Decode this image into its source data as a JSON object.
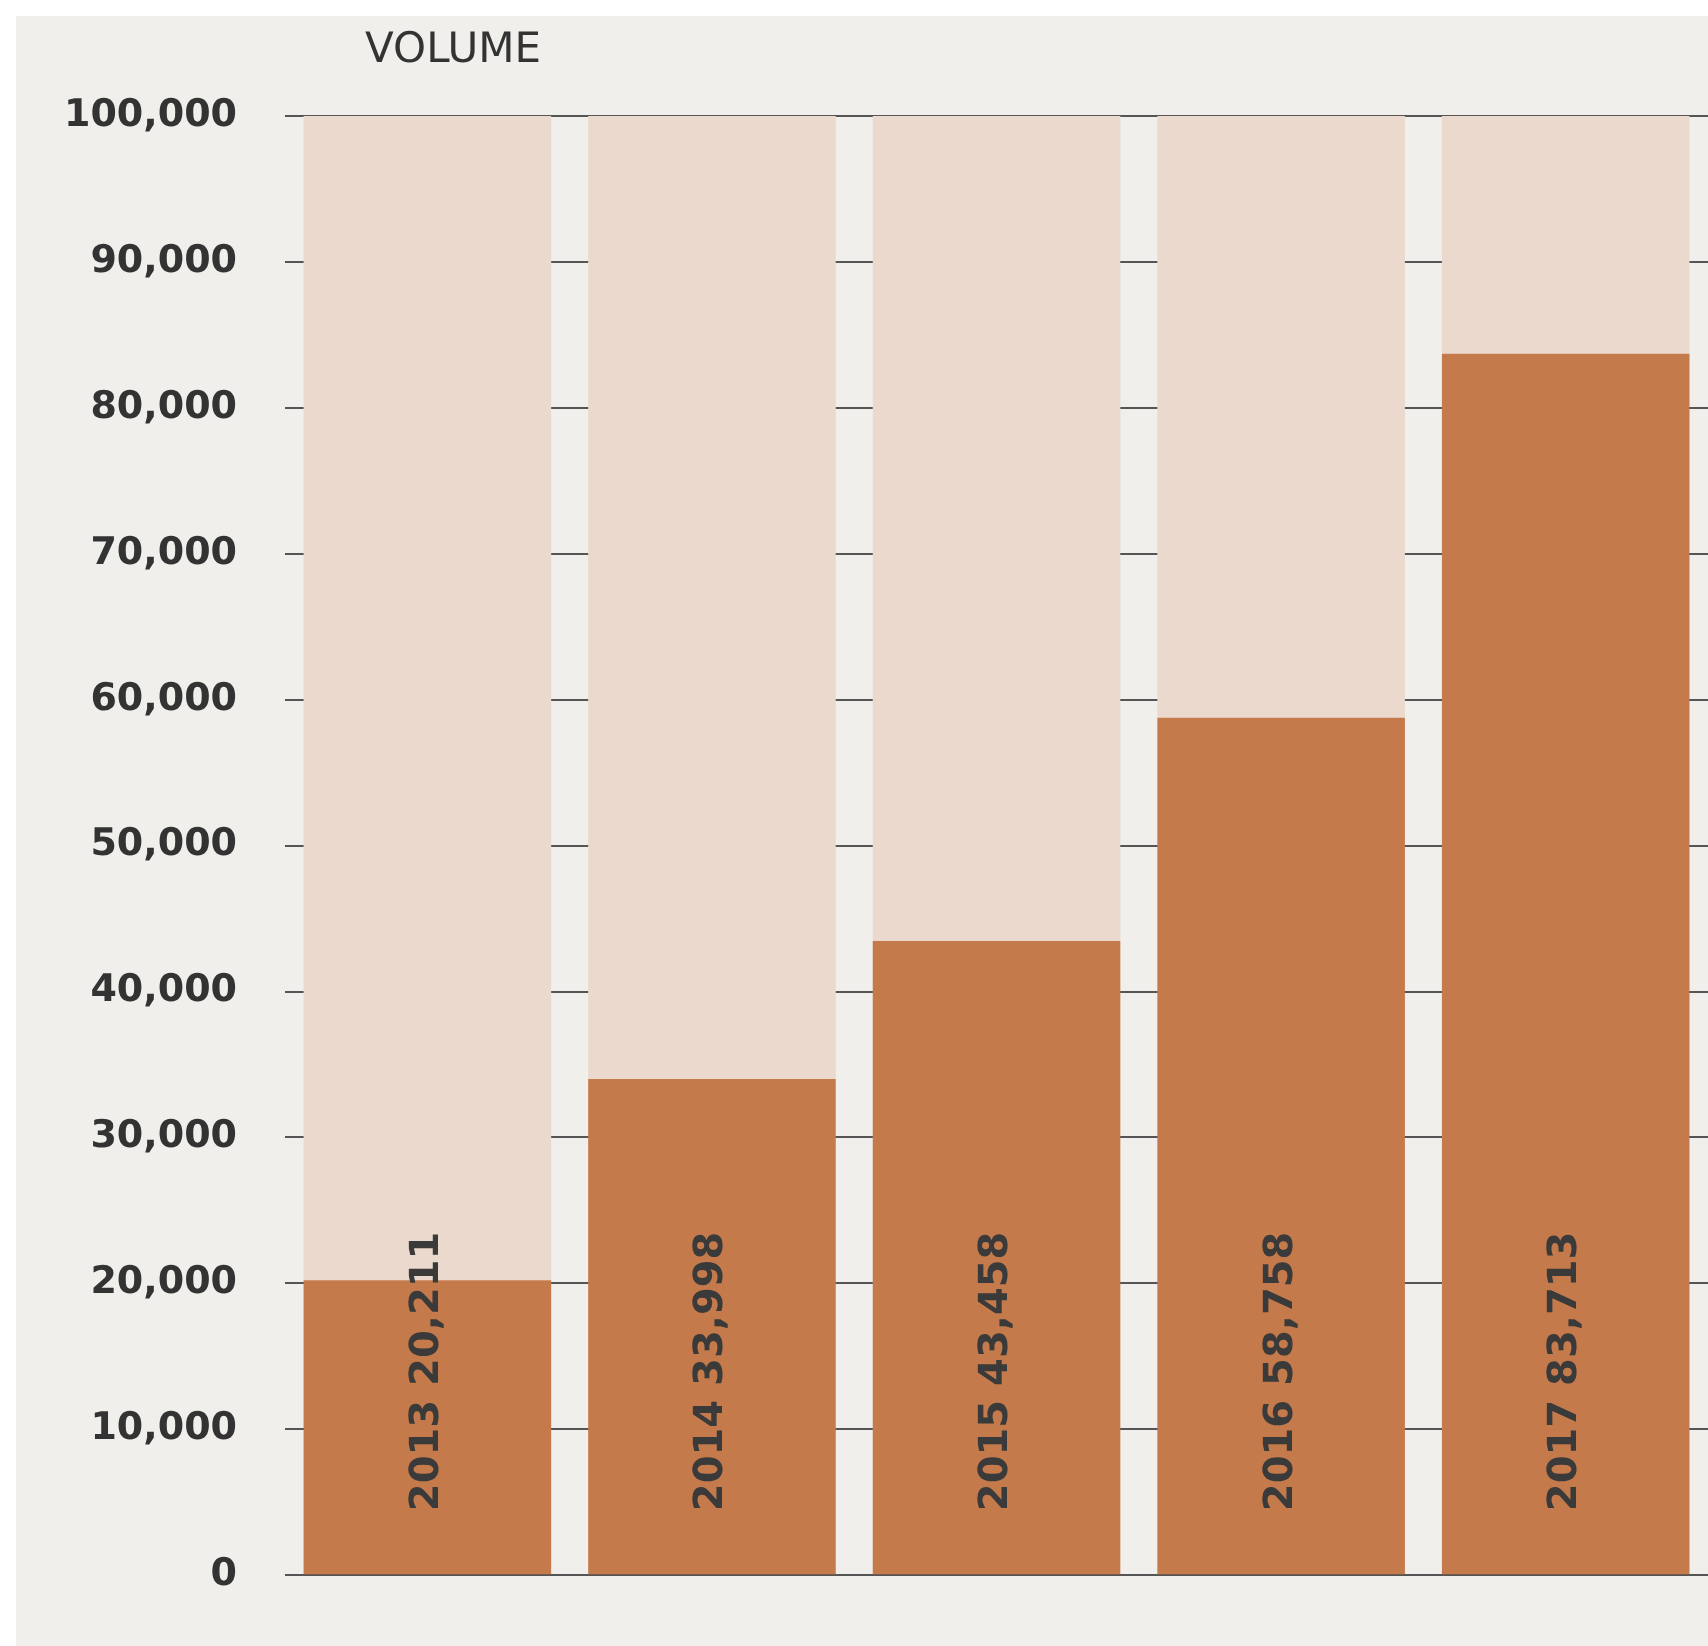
{
  "chart_data": {
    "type": "bar",
    "title": "VOLUME",
    "categories": [
      null,
      null,
      null,
      null,
      null
    ],
    "stacked": true,
    "series": [
      {
        "color": "#c57a4c",
        "values": [
          20211,
          33998,
          43458,
          58758,
          83713
        ],
        "value_labels": [
          "2013 20,211",
          "2014 33,998",
          "2015 43,458",
          "2016 58,758",
          "2017 83,713"
        ]
      },
      {
        "color": "#ead9cc",
        "values": [
          79789,
          66002,
          56542,
          41242,
          16287
        ]
      }
    ],
    "ylim": [
      0,
      100000
    ],
    "yticks": [
      0,
      {
        "value": 10000,
        "label": "10,000"
      },
      {
        "value": 20000,
        "label": "20,000"
      },
      {
        "value": 30000,
        "label": "30,000"
      },
      {
        "value": 40000,
        "label": "40,000"
      },
      {
        "value": 50000,
        "label": "50,000"
      },
      {
        "value": 60000,
        "label": "60,000"
      },
      {
        "value": 70000,
        "label": "70,000"
      },
      {
        "value": 80000,
        "label": "80,000"
      },
      {
        "value": 90000,
        "label": "90,000"
      },
      {
        "value": 100000,
        "label": "100,000"
      }
    ],
    "grid": "y",
    "tick_labels": "y",
    "legend": false
  }
}
